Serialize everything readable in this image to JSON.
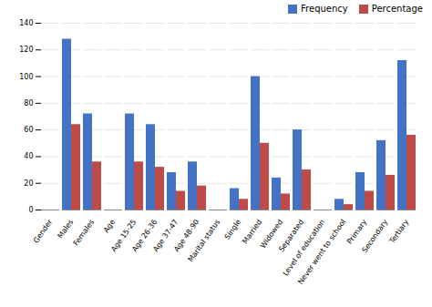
{
  "chart_data": {
    "type": "bar",
    "categories": [
      "Gender",
      "Males",
      "Females",
      "Age",
      "Age 15-25",
      "Age 26-36",
      "Age 37-47",
      "Age 48-90",
      "Marital status",
      "Single",
      "Married",
      "Widowed",
      "Separated",
      "Level of education",
      "Never went to school",
      "Primary",
      "Secondary",
      "Tertiary"
    ],
    "series": [
      {
        "name": "Frequency",
        "color": "#4472c4",
        "values": [
          0,
          128,
          72,
          0,
          72,
          64,
          28,
          36,
          0,
          16,
          100,
          24,
          60,
          0,
          8,
          28,
          52,
          112
        ]
      },
      {
        "name": "Percentage",
        "color": "#be4b48",
        "values": [
          0,
          64,
          36,
          0,
          36,
          32,
          14,
          18,
          0,
          8,
          50,
          12,
          30,
          0,
          4,
          14,
          26,
          56
        ]
      }
    ],
    "ylim": [
      0,
      140
    ],
    "yticks": [
      0,
      20,
      40,
      60,
      80,
      100,
      120,
      140
    ],
    "grid": true,
    "legend": "upper right"
  }
}
